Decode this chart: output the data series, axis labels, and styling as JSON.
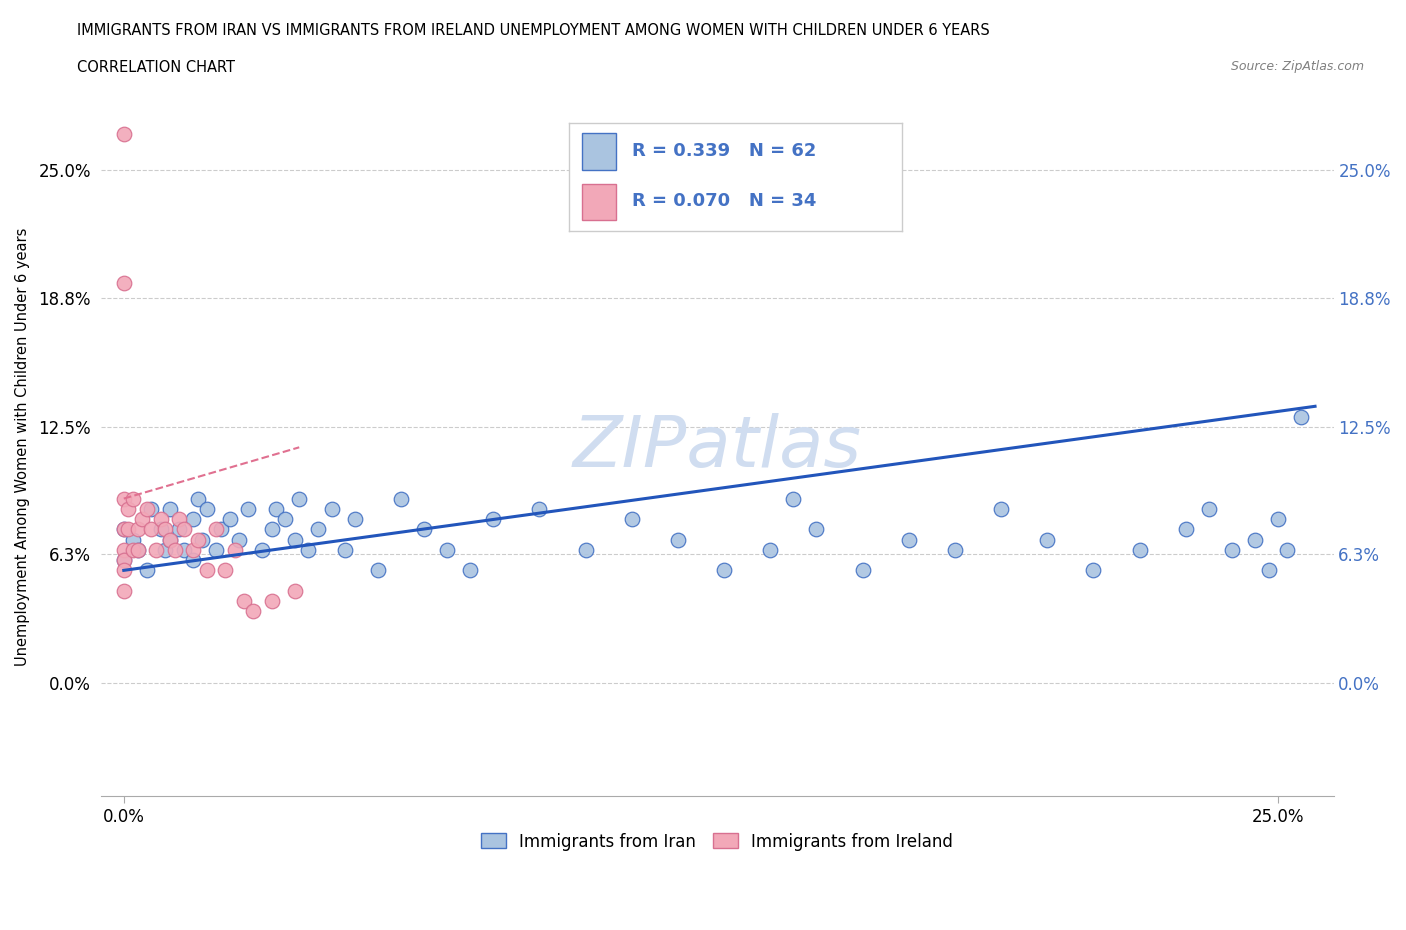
{
  "title_line1": "IMMIGRANTS FROM IRAN VS IMMIGRANTS FROM IRELAND UNEMPLOYMENT AMONG WOMEN WITH CHILDREN UNDER 6 YEARS",
  "title_line2": "CORRELATION CHART",
  "source_text": "Source: ZipAtlas.com",
  "ylabel": "Unemployment Among Women with Children Under 6 years",
  "xlim": [
    -0.005,
    0.262
  ],
  "ylim": [
    -0.055,
    0.285
  ],
  "ytick_labels": [
    "0.0%",
    "6.3%",
    "12.5%",
    "18.8%",
    "25.0%"
  ],
  "ytick_values": [
    0.0,
    0.063,
    0.125,
    0.188,
    0.25
  ],
  "xtick_labels": [
    "0.0%",
    "25.0%"
  ],
  "xtick_values": [
    0.0,
    0.25
  ],
  "iran_color": "#aac4e0",
  "ireland_color": "#f2a8b8",
  "iran_edge_color": "#4472c4",
  "ireland_edge_color": "#d87090",
  "iran_line_color": "#2255bb",
  "ireland_line_color": "#e07090",
  "legend_text_color": "#4472c4",
  "watermark_color": "#d0ddf0",
  "iran_x": [
    0.0,
    0.0,
    0.002,
    0.003,
    0.005,
    0.006,
    0.008,
    0.009,
    0.01,
    0.01,
    0.012,
    0.013,
    0.015,
    0.015,
    0.016,
    0.017,
    0.018,
    0.02,
    0.021,
    0.023,
    0.025,
    0.027,
    0.03,
    0.032,
    0.033,
    0.035,
    0.037,
    0.038,
    0.04,
    0.042,
    0.045,
    0.048,
    0.05,
    0.055,
    0.06,
    0.065,
    0.07,
    0.075,
    0.08,
    0.09,
    0.1,
    0.11,
    0.12,
    0.13,
    0.14,
    0.145,
    0.15,
    0.16,
    0.17,
    0.18,
    0.19,
    0.2,
    0.21,
    0.22,
    0.23,
    0.235,
    0.24,
    0.245,
    0.248,
    0.25,
    0.252,
    0.255
  ],
  "iran_y": [
    0.075,
    0.06,
    0.07,
    0.065,
    0.055,
    0.085,
    0.075,
    0.065,
    0.085,
    0.07,
    0.075,
    0.065,
    0.08,
    0.06,
    0.09,
    0.07,
    0.085,
    0.065,
    0.075,
    0.08,
    0.07,
    0.085,
    0.065,
    0.075,
    0.085,
    0.08,
    0.07,
    0.09,
    0.065,
    0.075,
    0.085,
    0.065,
    0.08,
    0.055,
    0.09,
    0.075,
    0.065,
    0.055,
    0.08,
    0.085,
    0.065,
    0.08,
    0.07,
    0.055,
    0.065,
    0.09,
    0.075,
    0.055,
    0.07,
    0.065,
    0.085,
    0.07,
    0.055,
    0.065,
    0.075,
    0.085,
    0.065,
    0.07,
    0.055,
    0.08,
    0.065,
    0.13
  ],
  "ireland_x": [
    0.0,
    0.0,
    0.0,
    0.0,
    0.0,
    0.0,
    0.0,
    0.0,
    0.001,
    0.001,
    0.002,
    0.002,
    0.003,
    0.003,
    0.004,
    0.005,
    0.006,
    0.007,
    0.008,
    0.009,
    0.01,
    0.011,
    0.012,
    0.013,
    0.015,
    0.016,
    0.018,
    0.02,
    0.022,
    0.024,
    0.026,
    0.028,
    0.032,
    0.037
  ],
  "ireland_y": [
    0.268,
    0.195,
    0.09,
    0.075,
    0.065,
    0.06,
    0.055,
    0.045,
    0.085,
    0.075,
    0.065,
    0.09,
    0.075,
    0.065,
    0.08,
    0.085,
    0.075,
    0.065,
    0.08,
    0.075,
    0.07,
    0.065,
    0.08,
    0.075,
    0.065,
    0.07,
    0.055,
    0.075,
    0.055,
    0.065,
    0.04,
    0.035,
    0.04,
    0.045
  ],
  "iran_line_x": [
    0.0,
    0.258
  ],
  "iran_line_y": [
    0.055,
    0.135
  ],
  "ireland_line_x": [
    0.0,
    0.038
  ],
  "ireland_line_y": [
    0.09,
    0.115
  ]
}
